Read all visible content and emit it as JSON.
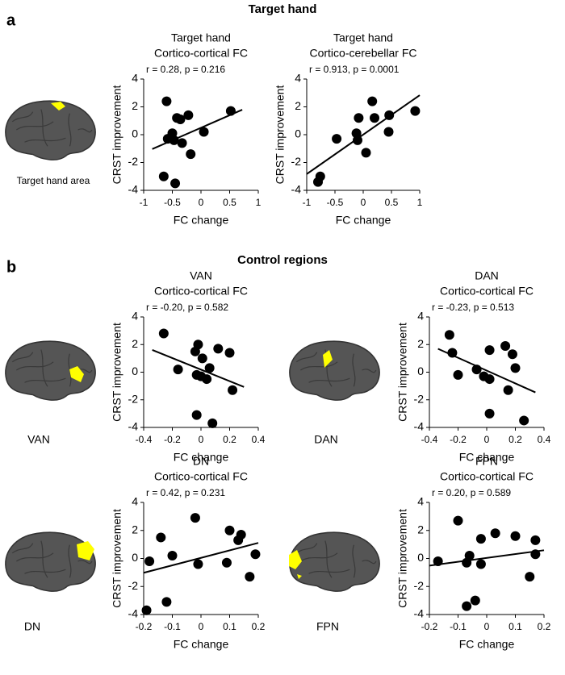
{
  "sections": [
    {
      "label": "a",
      "title": "Target hand"
    },
    {
      "label": "b",
      "title": "Control regions"
    }
  ],
  "brain_labels": [
    "Target hand area",
    "VAN",
    "DAN",
    "DN",
    "FPN"
  ],
  "chart_data": [
    {
      "type": "scatter",
      "title": "Target hand",
      "subtitle": "Cortico-cortical FC",
      "annotation": "r = 0.28, p = 0.216",
      "x_label": "FC change",
      "y_label": "CRST improvement",
      "color": "#000000",
      "fit_line": true,
      "xlim": [
        -1,
        1
      ],
      "xticks": [
        -1,
        -0.5,
        0,
        0.5,
        1
      ],
      "ylim": [
        -4,
        4
      ],
      "yticks": [
        -4,
        -2,
        0,
        2,
        4
      ],
      "x": [
        -0.6,
        -0.42,
        -0.36,
        -0.22,
        -0.5,
        -0.58,
        -0.47,
        -0.33,
        -0.18,
        0.05,
        0.52,
        -0.65,
        -0.45
      ],
      "values": [
        2.4,
        1.2,
        1.1,
        1.4,
        0.1,
        -0.3,
        -0.4,
        -0.6,
        -1.4,
        0.2,
        1.7,
        -3,
        -3.5
      ]
    },
    {
      "type": "scatter",
      "title": "Target hand",
      "subtitle": "Cortico-cerebellar FC",
      "annotation": "r = 0.913, p = 0.0001",
      "x_label": "FC change",
      "y_label": "CRST improvement",
      "color": "#000000",
      "fit_line": true,
      "xlim": [
        -1,
        1
      ],
      "xticks": [
        -1,
        -0.5,
        0,
        0.5,
        1
      ],
      "ylim": [
        -4,
        4
      ],
      "yticks": [
        -4,
        -2,
        0,
        2,
        4
      ],
      "x": [
        -0.8,
        -0.76,
        -0.47,
        -0.12,
        -0.1,
        -0.08,
        0.05,
        0.16,
        0.2,
        0.45,
        0.46,
        0.92
      ],
      "values": [
        -3.4,
        -3,
        -0.3,
        0.1,
        -0.4,
        1.2,
        -1.3,
        2.4,
        1.2,
        0.2,
        1.4,
        1.7
      ]
    },
    {
      "type": "scatter",
      "title": "VAN",
      "subtitle": "Cortico-cortical FC",
      "annotation": "r = -0.20, p = 0.582",
      "x_label": "FC change",
      "y_label": "CRST improvement",
      "color": "#000000",
      "fit_line": true,
      "xlim": [
        -0.4,
        0.4
      ],
      "xticks": [
        -0.4,
        -0.2,
        0,
        0.2,
        0.4
      ],
      "ylim": [
        -4,
        4
      ],
      "yticks": [
        -4,
        -2,
        0,
        2,
        4
      ],
      "x": [
        -0.26,
        -0.16,
        -0.04,
        -0.02,
        -0.03,
        0.01,
        0,
        0.04,
        0.06,
        0.12,
        0.2,
        0.22,
        -0.03,
        0.08
      ],
      "values": [
        2.8,
        0.2,
        1.5,
        2,
        -0.2,
        1,
        -0.3,
        -0.5,
        0.3,
        1.7,
        1.4,
        -1.3,
        -3.1,
        -3.7
      ]
    },
    {
      "type": "scatter",
      "title": "DAN",
      "subtitle": "Cortico-cortical FC",
      "annotation": "r = -0.23, p = 0.513",
      "x_label": "FC change",
      "y_label": "CRST improvement",
      "color": "#000000",
      "fit_line": true,
      "xlim": [
        -0.4,
        0.4
      ],
      "xticks": [
        -0.4,
        -0.2,
        0,
        0.2,
        0.4
      ],
      "ylim": [
        -4,
        4
      ],
      "yticks": [
        -4,
        -2,
        0,
        2,
        4
      ],
      "x": [
        -0.26,
        -0.24,
        -0.2,
        -0.07,
        -0.02,
        0.02,
        0.02,
        0.13,
        0.18,
        0.2,
        0.15,
        0.02,
        0.26
      ],
      "values": [
        2.7,
        1.4,
        -0.2,
        0.2,
        -0.3,
        1.6,
        -0.5,
        1.9,
        1.3,
        0.3,
        -1.3,
        -3,
        -3.5
      ]
    },
    {
      "type": "scatter",
      "title": "DN",
      "subtitle": "Cortico-cortical FC",
      "annotation": "r = 0.42, p = 0.231",
      "x_label": "FC change",
      "y_label": "CRST improvement",
      "color": "#000000",
      "fit_line": true,
      "xlim": [
        -0.2,
        0.2
      ],
      "xticks": [
        -0.2,
        -0.1,
        0,
        0.1,
        0.2
      ],
      "ylim": [
        -4,
        4
      ],
      "yticks": [
        -4,
        -2,
        0,
        2,
        4
      ],
      "x": [
        -0.18,
        -0.14,
        -0.12,
        -0.1,
        -0.02,
        -0.01,
        0.1,
        0.09,
        0.13,
        0.14,
        0.17,
        0.19,
        -0.19
      ],
      "values": [
        -0.2,
        1.5,
        -3.1,
        0.2,
        2.9,
        -0.4,
        2,
        -0.3,
        1.3,
        1.7,
        -1.3,
        0.3,
        -3.7
      ]
    },
    {
      "type": "scatter",
      "title": "FPN",
      "subtitle": "Cortico-cortical FC",
      "annotation": "r = 0.20, p = 0.589",
      "x_label": "FC change",
      "y_label": "CRST improvement",
      "color": "#000000",
      "fit_line": true,
      "xlim": [
        -0.2,
        0.2
      ],
      "xticks": [
        -0.2,
        -0.1,
        0,
        0.1,
        0.2
      ],
      "ylim": [
        -4,
        4
      ],
      "yticks": [
        -4,
        -2,
        0,
        2,
        4
      ],
      "x": [
        -0.17,
        -0.1,
        -0.07,
        -0.06,
        -0.02,
        -0.02,
        0.03,
        0.1,
        0.15,
        0.17,
        0.17,
        -0.07,
        -0.04
      ],
      "values": [
        -0.2,
        2.7,
        -0.3,
        0.2,
        1.4,
        -0.4,
        1.8,
        1.6,
        -1.3,
        1.3,
        0.3,
        -3.4,
        -3
      ]
    }
  ]
}
